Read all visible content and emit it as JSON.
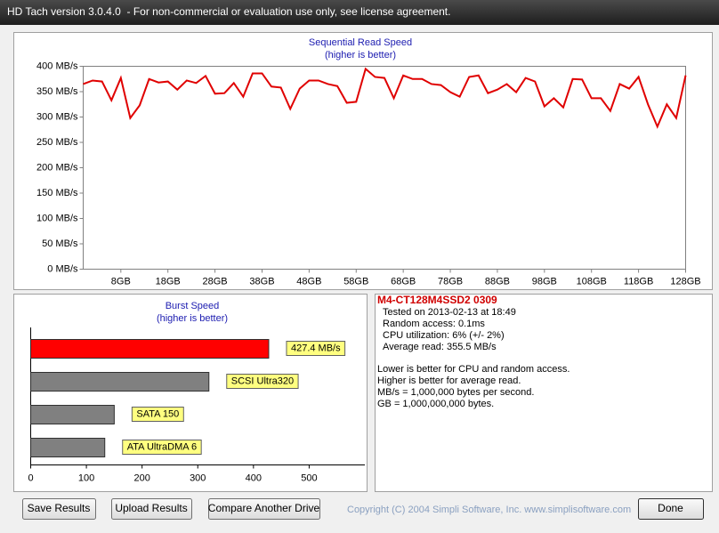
{
  "window": {
    "title": "HD Tach version 3.0.4.0  - For non-commercial or evaluation use only, see license agreement."
  },
  "chart_data": [
    {
      "type": "line",
      "title": "Sequential Read Speed",
      "subtitle": "(higher is better)",
      "x": [
        0,
        2,
        4,
        6,
        8,
        10,
        12,
        14,
        16,
        18,
        20,
        22,
        24,
        26,
        28,
        30,
        32,
        34,
        36,
        38,
        40,
        42,
        44,
        46,
        48,
        50,
        52,
        54,
        56,
        58,
        60,
        62,
        64,
        66,
        68,
        70,
        72,
        74,
        76,
        78,
        80,
        82,
        84,
        86,
        88,
        90,
        92,
        94,
        96,
        98,
        100,
        102,
        104,
        106,
        108,
        110,
        112,
        114,
        116,
        118,
        120,
        122,
        124,
        126,
        128
      ],
      "values": [
        365,
        372,
        370,
        333,
        377,
        298,
        323,
        375,
        368,
        370,
        354,
        372,
        367,
        381,
        346,
        347,
        367,
        340,
        386,
        386,
        360,
        358,
        316,
        356,
        372,
        372,
        365,
        361,
        328,
        330,
        395,
        379,
        377,
        337,
        382,
        375,
        375,
        365,
        363,
        349,
        340,
        379,
        382,
        347,
        354,
        365,
        349,
        377,
        370,
        321,
        337,
        319,
        375,
        374,
        337,
        337,
        312,
        365,
        356,
        379,
        325,
        281,
        325,
        298,
        382
      ],
      "color": "#e00000",
      "xlim": [
        0,
        128
      ],
      "xticks": [
        {
          "value": 8,
          "label": "8GB"
        },
        {
          "value": 18,
          "label": "18GB"
        },
        {
          "value": 28,
          "label": "28GB"
        },
        {
          "value": 38,
          "label": "38GB"
        },
        {
          "value": 48,
          "label": "48GB"
        },
        {
          "value": 58,
          "label": "58GB"
        },
        {
          "value": 68,
          "label": "68GB"
        },
        {
          "value": 78,
          "label": "78GB"
        },
        {
          "value": 88,
          "label": "88GB"
        },
        {
          "value": 98,
          "label": "98GB"
        },
        {
          "value": 108,
          "label": "108GB"
        },
        {
          "value": 118,
          "label": "118GB"
        },
        {
          "value": 128,
          "label": "128GB"
        }
      ],
      "ylim": [
        0,
        400
      ],
      "yticks": [
        {
          "value": 0,
          "label": "0 MB/s"
        },
        {
          "value": 50,
          "label": "50 MB/s"
        },
        {
          "value": 100,
          "label": "100 MB/s"
        },
        {
          "value": 150,
          "label": "150 MB/s"
        },
        {
          "value": 200,
          "label": "200 MB/s"
        },
        {
          "value": 250,
          "label": "250 MB/s"
        },
        {
          "value": 300,
          "label": "300 MB/s"
        },
        {
          "value": 350,
          "label": "350 MB/s"
        },
        {
          "value": 400,
          "label": "400 MB/s"
        }
      ]
    },
    {
      "type": "hbar",
      "title": "Burst Speed",
      "subtitle": "(higher is better)",
      "categories": [
        null,
        "SCSI Ultra320",
        "SATA 150",
        "ATA UltraDMA 6"
      ],
      "values": [
        427.4,
        320,
        150,
        133
      ],
      "value_labels": [
        "427.4 MB/s",
        null,
        null,
        null
      ],
      "colors": [
        "#ff0000",
        "#808080",
        "#808080",
        "#808080"
      ],
      "xlim": [
        0,
        600
      ],
      "xticks": [
        0,
        100,
        200,
        300,
        400,
        500
      ]
    }
  ],
  "info": {
    "drive": "M4-CT128M4SSD2 0309",
    "lines": [
      "Tested on 2013-02-13 at 18:49",
      "Random access: 0.1ms",
      "CPU utilization: 6% (+/- 2%)",
      "Average read: 355.5 MB/s"
    ],
    "notes": [
      "Lower is better for CPU and random access.",
      "Higher is better for average read.",
      "MB/s = 1,000,000 bytes per second.",
      "GB = 1,000,000,000 bytes."
    ]
  },
  "buttons": [
    "Save Results",
    "Upload Results",
    "Compare Another Drive",
    "Done"
  ],
  "copyright": "Copyright (C) 2004 Simpli Software, Inc. www.simplisoftware.com"
}
